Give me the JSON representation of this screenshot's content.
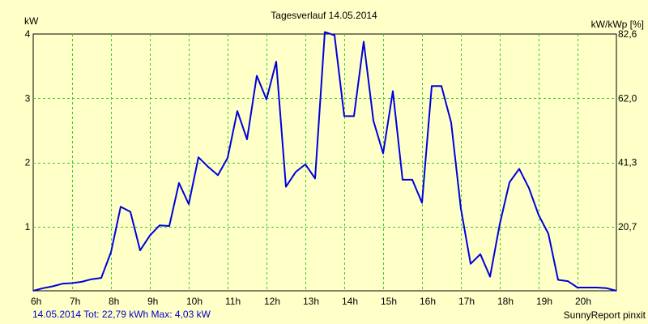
{
  "chart_data": {
    "type": "line",
    "title": "Tagesverlauf 14.05.2014",
    "ylabel_left": "kW",
    "ylabel_right": "kW/kWp [%]",
    "x_range": [
      6.0,
      21.0
    ],
    "ylim": [
      0,
      4
    ],
    "x_ticks": [
      {
        "value": 6,
        "label": "6h"
      },
      {
        "value": 7,
        "label": "7h"
      },
      {
        "value": 8,
        "label": "8h"
      },
      {
        "value": 9,
        "label": "9h"
      },
      {
        "value": 10,
        "label": "10h"
      },
      {
        "value": 11,
        "label": "11h"
      },
      {
        "value": 12,
        "label": "12h"
      },
      {
        "value": 13,
        "label": "13h"
      },
      {
        "value": 14,
        "label": "14h"
      },
      {
        "value": 15,
        "label": "15h"
      },
      {
        "value": 16,
        "label": "16h"
      },
      {
        "value": 17,
        "label": "17h"
      },
      {
        "value": 18,
        "label": "18h"
      },
      {
        "value": 19,
        "label": "19h"
      },
      {
        "value": 20,
        "label": "20h"
      }
    ],
    "y_ticks_left": [
      {
        "value": 1,
        "label": "1"
      },
      {
        "value": 2,
        "label": "2"
      },
      {
        "value": 3,
        "label": "3"
      },
      {
        "value": 4,
        "label": "4"
      }
    ],
    "y_ticks_right": [
      {
        "value": 1,
        "label": "20,7"
      },
      {
        "value": 2,
        "label": "41,3"
      },
      {
        "value": 3,
        "label": "62,0"
      },
      {
        "value": 4,
        "label": "82,6"
      }
    ],
    "grid": true,
    "series": [
      {
        "color": "#0000dd",
        "x": [
          6.0,
          6.25,
          6.5,
          6.75,
          7.0,
          7.25,
          7.5,
          7.75,
          8.0,
          8.25,
          8.5,
          8.75,
          9.0,
          9.25,
          9.5,
          9.75,
          10.0,
          10.25,
          10.5,
          10.75,
          11.0,
          11.25,
          11.5,
          11.75,
          12.0,
          12.25,
          12.5,
          12.75,
          13.0,
          13.25,
          13.5,
          13.75,
          14.0,
          14.25,
          14.5,
          14.75,
          15.0,
          15.25,
          15.5,
          15.75,
          16.0,
          16.25,
          16.5,
          16.75,
          17.0,
          17.25,
          17.5,
          17.75,
          18.0,
          18.25,
          18.5,
          18.75,
          19.0,
          19.25,
          19.5,
          19.75,
          20.0,
          20.25,
          20.5,
          20.75,
          21.0
        ],
        "values": [
          0.0,
          0.04,
          0.07,
          0.11,
          0.12,
          0.14,
          0.18,
          0.2,
          0.6,
          1.31,
          1.23,
          0.63,
          0.86,
          1.02,
          1.01,
          1.68,
          1.35,
          2.08,
          1.93,
          1.8,
          2.07,
          2.8,
          2.36,
          3.35,
          2.98,
          3.57,
          1.62,
          1.85,
          1.97,
          1.75,
          4.03,
          3.98,
          2.72,
          2.72,
          3.88,
          2.65,
          2.14,
          3.11,
          1.73,
          1.73,
          1.37,
          3.19,
          3.19,
          2.62,
          1.28,
          0.42,
          0.57,
          0.22,
          1.04,
          1.69,
          1.9,
          1.6,
          1.18,
          0.89,
          0.17,
          0.15,
          0.05,
          0.05,
          0.05,
          0.04,
          0.0
        ]
      }
    ]
  },
  "footer": {
    "summary": "14.05.2014 Tot: 22,79 kWh Max: 4,03 kW",
    "credit": "SunnyReport pinxit"
  }
}
